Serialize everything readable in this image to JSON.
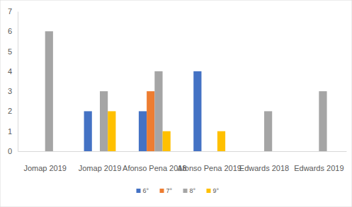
{
  "chart_data": {
    "type": "bar",
    "categories": [
      "Jomap 2019",
      "Jomap 2019",
      "Afonso Pena 2018",
      "Afonso Pena 2019",
      "Edwards 2018",
      "Edwards 2019"
    ],
    "series": [
      {
        "name": "6°",
        "color": "#4472c4",
        "values": [
          0,
          2,
          2,
          4,
          0,
          0
        ]
      },
      {
        "name": "7°",
        "color": "#ed7d31",
        "values": [
          0,
          0,
          3,
          0,
          0,
          0
        ]
      },
      {
        "name": "8°",
        "color": "#a5a5a5",
        "values": [
          6,
          3,
          4,
          0,
          2,
          3
        ]
      },
      {
        "name": "9°",
        "color": "#ffc000",
        "values": [
          0,
          2,
          1,
          1,
          0,
          0
        ]
      }
    ],
    "ylim": [
      0,
      7
    ],
    "yticks": [
      0,
      1,
      2,
      3,
      4,
      5,
      6,
      7
    ],
    "grid": false,
    "legend": "bottom"
  }
}
